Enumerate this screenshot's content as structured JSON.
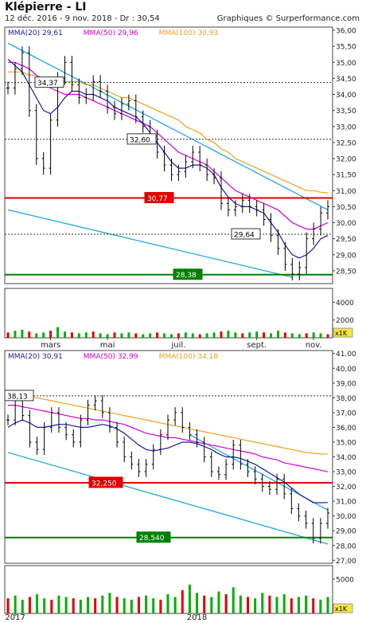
{
  "header": {
    "title": "Klépierre - LI",
    "subtitle": "12 déc. 2016 - 9 nov. 2018 - Dr : 30,54",
    "credit": "Graphiques © Surperformance.com"
  },
  "chart_data": [
    {
      "type": "line",
      "name": "daily",
      "y_ticks": [
        "28,50",
        "29,00",
        "29,50",
        "30,00",
        "30,50",
        "31,00",
        "31,50",
        "32,00",
        "32,50",
        "33,00",
        "33,50",
        "34,00",
        "34,50",
        "35,00",
        "35,50",
        "36,00"
      ],
      "ylim": [
        28.1,
        36.1
      ],
      "x_ticks": [
        "mars",
        "mai",
        "juil.",
        "sept.",
        "nov."
      ],
      "ma_legend": [
        {
          "label": "MMA(20)",
          "value": "29,61",
          "color": "#1a1aa6"
        },
        {
          "label": "MMA(50)",
          "value": "29,96",
          "color": "#d400d4"
        },
        {
          "label": "MMA(100)",
          "value": "30,93",
          "color": "#f0a020"
        }
      ],
      "price": [
        34.2,
        34.8,
        35.3,
        33.5,
        32.0,
        31.7,
        33.2,
        34.5,
        35.0,
        34.3,
        33.9,
        34.0,
        34.4,
        34.1,
        33.6,
        33.4,
        33.7,
        33.8,
        33.3,
        33.0,
        32.7,
        32.2,
        31.8,
        31.5,
        31.6,
        31.9,
        32.2,
        31.8,
        31.5,
        31.4,
        30.6,
        30.4,
        30.5,
        30.7,
        30.5,
        30.4,
        30.1,
        29.6,
        29.2,
        28.7,
        28.4,
        28.6,
        29.5,
        29.8,
        30.3,
        30.5
      ],
      "ma20": [
        35.1,
        34.9,
        34.7,
        34.3,
        33.9,
        33.5,
        33.4,
        33.6,
        33.9,
        34.1,
        34.1,
        34.0,
        34.0,
        33.9,
        33.8,
        33.6,
        33.5,
        33.4,
        33.3,
        33.1,
        32.8,
        32.5,
        32.2,
        31.9,
        31.7,
        31.7,
        31.8,
        31.8,
        31.7,
        31.5,
        31.1,
        30.8,
        30.6,
        30.5,
        30.5,
        30.4,
        30.3,
        30.0,
        29.7,
        29.3,
        29.0,
        28.9,
        29.0,
        29.2,
        29.5,
        29.6
      ],
      "ma50": [
        35.0,
        35.0,
        34.9,
        34.8,
        34.6,
        34.4,
        34.2,
        34.1,
        34.0,
        34.0,
        34.0,
        33.9,
        33.8,
        33.7,
        33.6,
        33.5,
        33.4,
        33.3,
        33.2,
        33.1,
        33.0,
        32.8,
        32.6,
        32.4,
        32.2,
        32.1,
        32.0,
        31.9,
        31.8,
        31.6,
        31.4,
        31.2,
        31.0,
        30.9,
        30.8,
        30.7,
        30.6,
        30.5,
        30.4,
        30.2,
        30.0,
        29.9,
        29.8,
        29.8,
        29.9,
        30.0
      ],
      "ma100": [
        34.7,
        34.7,
        34.7,
        34.6,
        34.6,
        34.5,
        34.5,
        34.5,
        34.4,
        34.4,
        34.4,
        34.3,
        34.3,
        34.2,
        34.1,
        34.0,
        33.9,
        33.9,
        33.8,
        33.7,
        33.6,
        33.5,
        33.4,
        33.3,
        33.2,
        33.0,
        32.9,
        32.8,
        32.6,
        32.5,
        32.3,
        32.2,
        32.0,
        31.9,
        31.8,
        31.7,
        31.6,
        31.5,
        31.4,
        31.3,
        31.2,
        31.1,
        31.0,
        31.0,
        30.95,
        30.93
      ],
      "levels": [
        {
          "label": "34,37",
          "value": 34.37,
          "kind": "dotted"
        },
        {
          "label": "32,60",
          "value": 32.6,
          "kind": "dotted"
        },
        {
          "label": "30,77",
          "value": 30.77,
          "kind": "resistance",
          "color": "#e00000"
        },
        {
          "label": "29,64",
          "value": 29.64,
          "kind": "dotted"
        },
        {
          "label": "28,38",
          "value": 28.38,
          "kind": "support",
          "color": "#008000"
        }
      ],
      "trendlines": [
        {
          "from": [
            0,
            35.6
          ],
          "to": [
            45,
            30.4
          ]
        },
        {
          "from": [
            0,
            30.4
          ],
          "to": [
            40,
            28.3
          ]
        }
      ],
      "volume_axis": [
        "2000",
        "4000"
      ],
      "volume_unit": "x1K",
      "volume": [
        600,
        800,
        900,
        700,
        500,
        600,
        800,
        1200,
        700,
        600,
        500,
        600,
        700,
        500,
        400,
        600,
        500,
        600,
        500,
        400,
        500,
        600,
        500,
        400,
        500,
        600,
        500,
        400,
        500,
        600,
        700,
        800,
        600,
        500,
        600,
        700,
        600,
        500,
        800,
        600,
        500,
        400,
        500,
        600,
        500,
        400
      ]
    },
    {
      "type": "line",
      "name": "weekly",
      "y_ticks": [
        "27,00",
        "28,00",
        "29,00",
        "30,00",
        "31,00",
        "32,00",
        "33,00",
        "34,00",
        "35,00",
        "36,00",
        "37,00",
        "38,00",
        "39,00",
        "40,00",
        "41,00"
      ],
      "ylim": [
        26.8,
        41.2
      ],
      "x_ticks": [
        "2017",
        "2018"
      ],
      "ma_legend": [
        {
          "label": "MMA(20)",
          "value": "30,91",
          "color": "#1a1aa6"
        },
        {
          "label": "MMA(50)",
          "value": "32,99",
          "color": "#d400d4"
        },
        {
          "label": "MMA(100)",
          "value": "34,18",
          "color": "#f0a020"
        }
      ],
      "price": [
        36.5,
        37.8,
        36.8,
        35.0,
        34.5,
        36.0,
        37.0,
        36.0,
        35.5,
        35.0,
        36.5,
        37.5,
        37.8,
        37.0,
        36.0,
        35.0,
        34.0,
        33.5,
        33.0,
        33.5,
        34.5,
        35.5,
        36.5,
        37.0,
        36.0,
        35.5,
        35.0,
        34.0,
        33.0,
        32.8,
        33.5,
        34.8,
        33.5,
        33.0,
        32.5,
        32.0,
        31.8,
        32.5,
        31.5,
        30.5,
        30.0,
        29.5,
        28.5,
        29.5,
        30.2
      ],
      "ma20": [
        36.0,
        36.3,
        36.5,
        36.3,
        36.0,
        36.0,
        36.1,
        36.2,
        36.2,
        36.1,
        36.0,
        36.0,
        36.1,
        36.2,
        36.1,
        35.9,
        35.6,
        35.2,
        34.8,
        34.5,
        34.4,
        34.5,
        34.6,
        34.8,
        35.0,
        35.0,
        34.9,
        34.7,
        34.5,
        34.2,
        34.0,
        34.0,
        33.9,
        33.7,
        33.5,
        33.2,
        32.9,
        32.6,
        32.3,
        31.9,
        31.5,
        31.2,
        30.9,
        30.9,
        30.91
      ],
      "ma50": [
        37.5,
        37.5,
        37.4,
        37.3,
        37.2,
        37.1,
        37.0,
        36.9,
        36.8,
        36.7,
        36.6,
        36.6,
        36.5,
        36.5,
        36.4,
        36.3,
        36.2,
        36.0,
        35.8,
        35.6,
        35.5,
        35.4,
        35.3,
        35.3,
        35.2,
        35.1,
        35.0,
        34.9,
        34.8,
        34.7,
        34.6,
        34.5,
        34.4,
        34.3,
        34.2,
        34.0,
        33.9,
        33.8,
        33.6,
        33.5,
        33.4,
        33.3,
        33.2,
        33.1,
        32.99
      ],
      "ma100": [
        38.4,
        38.3,
        38.2,
        38.1,
        38.0,
        37.9,
        37.8,
        37.7,
        37.6,
        37.5,
        37.4,
        37.3,
        37.2,
        37.1,
        37.0,
        36.9,
        36.8,
        36.7,
        36.6,
        36.5,
        36.4,
        36.3,
        36.2,
        36.1,
        36.0,
        35.9,
        35.8,
        35.7,
        35.6,
        35.5,
        35.4,
        35.3,
        35.2,
        35.1,
        35.0,
        34.9,
        34.8,
        34.7,
        34.6,
        34.5,
        34.4,
        34.3,
        34.25,
        34.2,
        34.18
      ],
      "levels": [
        {
          "label": "38,13",
          "value": 38.13,
          "kind": "dotted"
        },
        {
          "label": "32,250",
          "value": 32.25,
          "kind": "resistance",
          "color": "#e00000"
        },
        {
          "label": "28,540",
          "value": 28.54,
          "kind": "support",
          "color": "#008000"
        }
      ],
      "trendlines": [
        {
          "from": [
            25,
            35.5
          ],
          "to": [
            44,
            30.4
          ]
        },
        {
          "from": [
            0,
            34.3
          ],
          "to": [
            44,
            28.1
          ]
        }
      ],
      "volume_axis": [
        "5000"
      ],
      "volume_unit": "x1K",
      "volume": [
        2200,
        2600,
        2000,
        2400,
        2800,
        2200,
        2000,
        2600,
        2400,
        2200,
        2000,
        2400,
        2200,
        2600,
        3000,
        2400,
        2200,
        2000,
        2400,
        2600,
        2200,
        2000,
        2800,
        2400,
        3400,
        4200,
        3000,
        2600,
        2400,
        3200,
        2800,
        3800,
        2600,
        2400,
        2200,
        3000,
        2600,
        2400,
        2800,
        2200,
        2400,
        2600,
        2200,
        2000,
        2400
      ]
    }
  ]
}
